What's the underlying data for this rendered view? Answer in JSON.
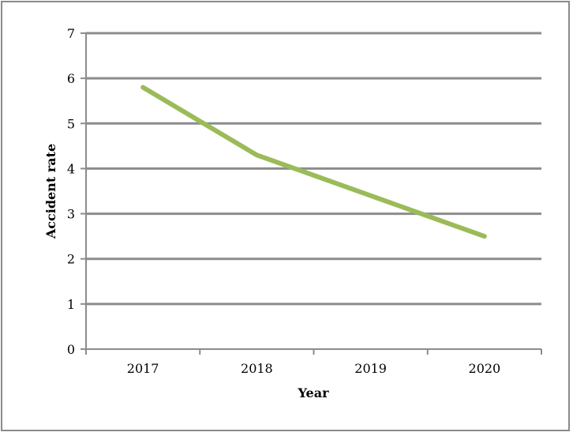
{
  "chart_data": {
    "type": "line",
    "title": "",
    "xlabel": "Year",
    "ylabel": "Accident rate",
    "categories": [
      "2017",
      "2018",
      "2019",
      "2020"
    ],
    "series": [
      {
        "values": [
          5.8,
          4.3,
          3.4,
          2.5
        ],
        "color": "#9bbb59"
      }
    ],
    "ylim": [
      0,
      7
    ],
    "yticks": [
      "0",
      "1",
      "2",
      "3",
      "4",
      "5",
      "6",
      "7"
    ],
    "grid": true,
    "legend": "none",
    "colors": {
      "grid": "#8c8c8c",
      "axis": "#8c8c8c",
      "border": "#8a8a8a"
    }
  }
}
